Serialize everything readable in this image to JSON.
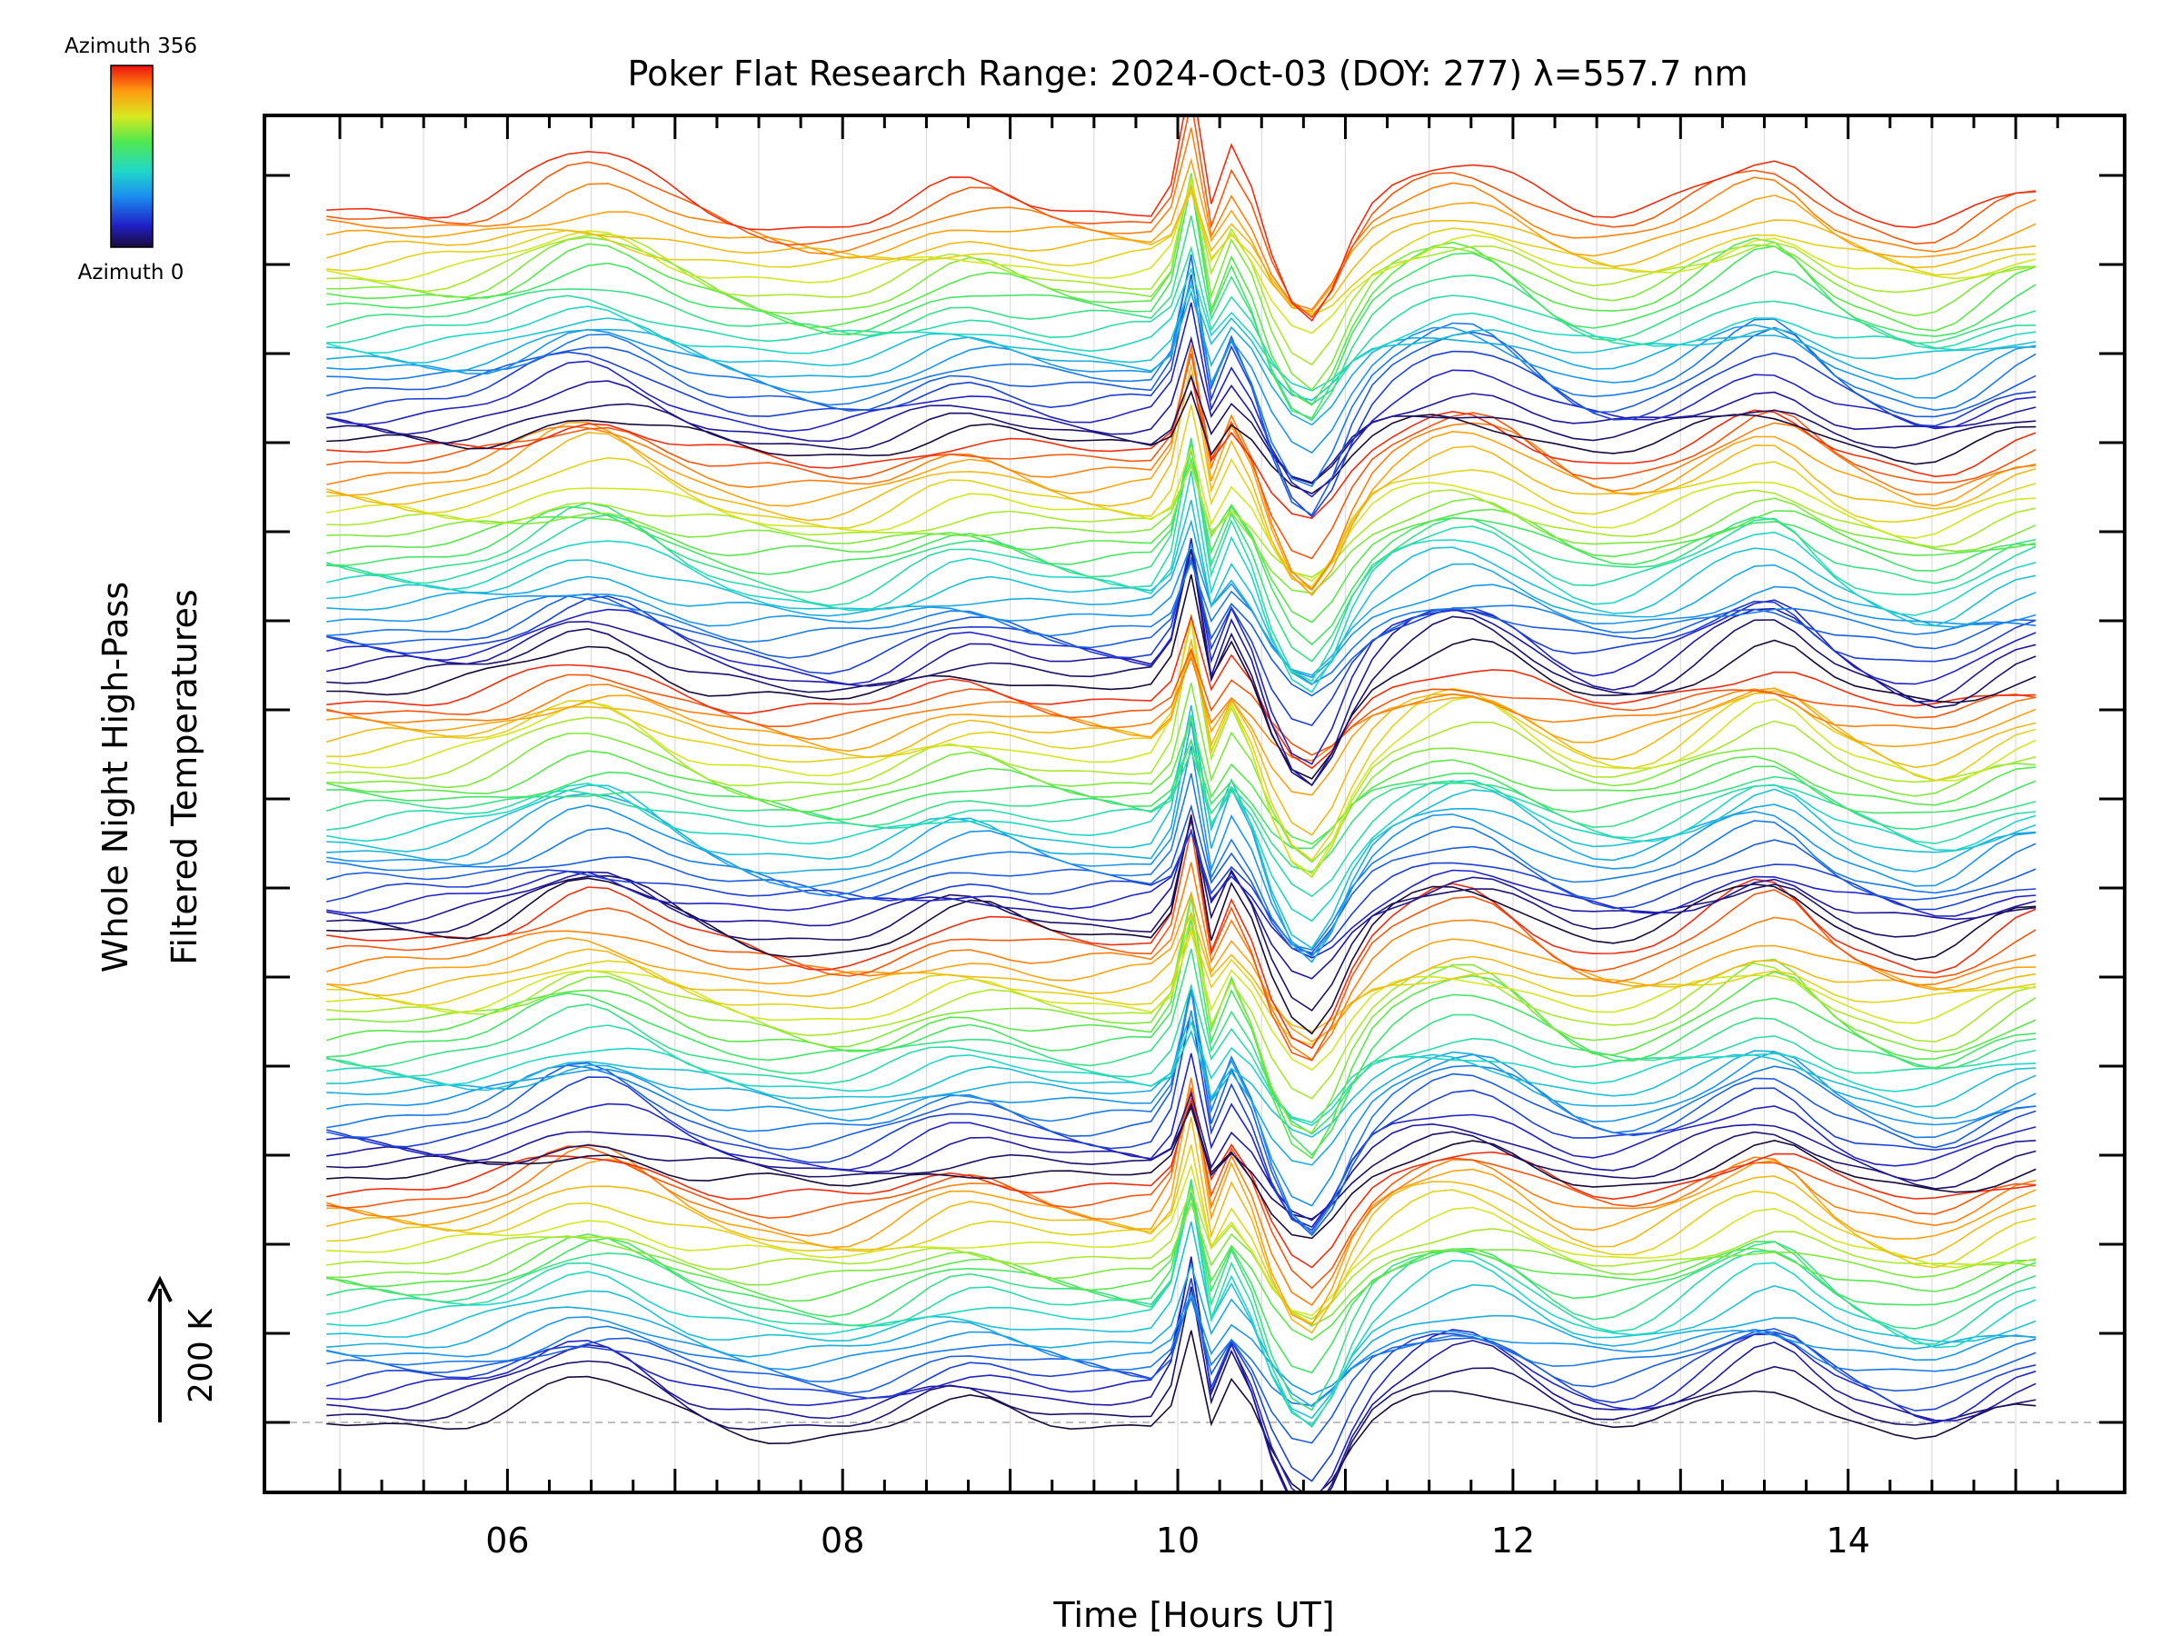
{
  "chart_data": {
    "type": "line",
    "title": "Poker Flat Research Range: 2024-Oct-03 (DOY: 277) λ=557.7 nm",
    "xlabel": "Time [Hours UT]",
    "ylabel_line1": "Whole Night High-Pass",
    "ylabel_line2": "Filtered Temperatures",
    "xlim": [
      4.55,
      15.65
    ],
    "x_ticks": [
      {
        "value": 6,
        "label": "06"
      },
      {
        "value": 8,
        "label": "08"
      },
      {
        "value": 10,
        "label": "10"
      },
      {
        "value": 12,
        "label": "12"
      },
      {
        "value": 14,
        "label": "14"
      }
    ],
    "grid": "vertical",
    "scale_bar_label": "200 K",
    "legend": {
      "placement": "top-left",
      "type": "colorbar",
      "max_label": "Azimuth 356",
      "min_label": "Azimuth 0",
      "colormap": "rainbow"
    },
    "series_count": 120,
    "x_range_data": [
      4.92,
      15.2
    ],
    "baseline": "dashed-gray"
  }
}
